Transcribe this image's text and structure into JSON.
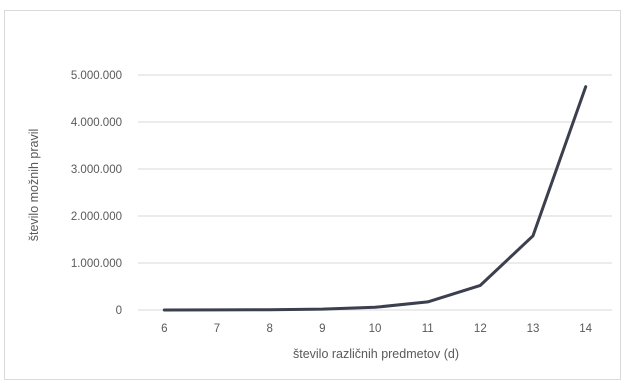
{
  "chart_data": {
    "type": "line",
    "title": "",
    "xlabel": "število različnih predmetov (d)",
    "ylabel": "število možnih pravil",
    "categories": [
      "6",
      "7",
      "8",
      "9",
      "10",
      "11",
      "12",
      "13",
      "14"
    ],
    "series": [
      {
        "values": [
          602,
          1932,
          6050,
          18660,
          57002,
          173052,
          523250,
          1577940,
          4750202
        ]
      }
    ],
    "ylim": [
      0,
      5000000
    ],
    "yticks": [
      0,
      1000000,
      2000000,
      3000000,
      4000000,
      5000000
    ],
    "ytick_labels": [
      "0",
      "1.000.000",
      "2.000.000",
      "3.000.000",
      "4.000.000",
      "5.000.000"
    ],
    "grid": true,
    "legend": "none",
    "colors": {
      "line": "#3b3f4e",
      "grid": "#d9d9d9",
      "text": "#595959"
    }
  }
}
